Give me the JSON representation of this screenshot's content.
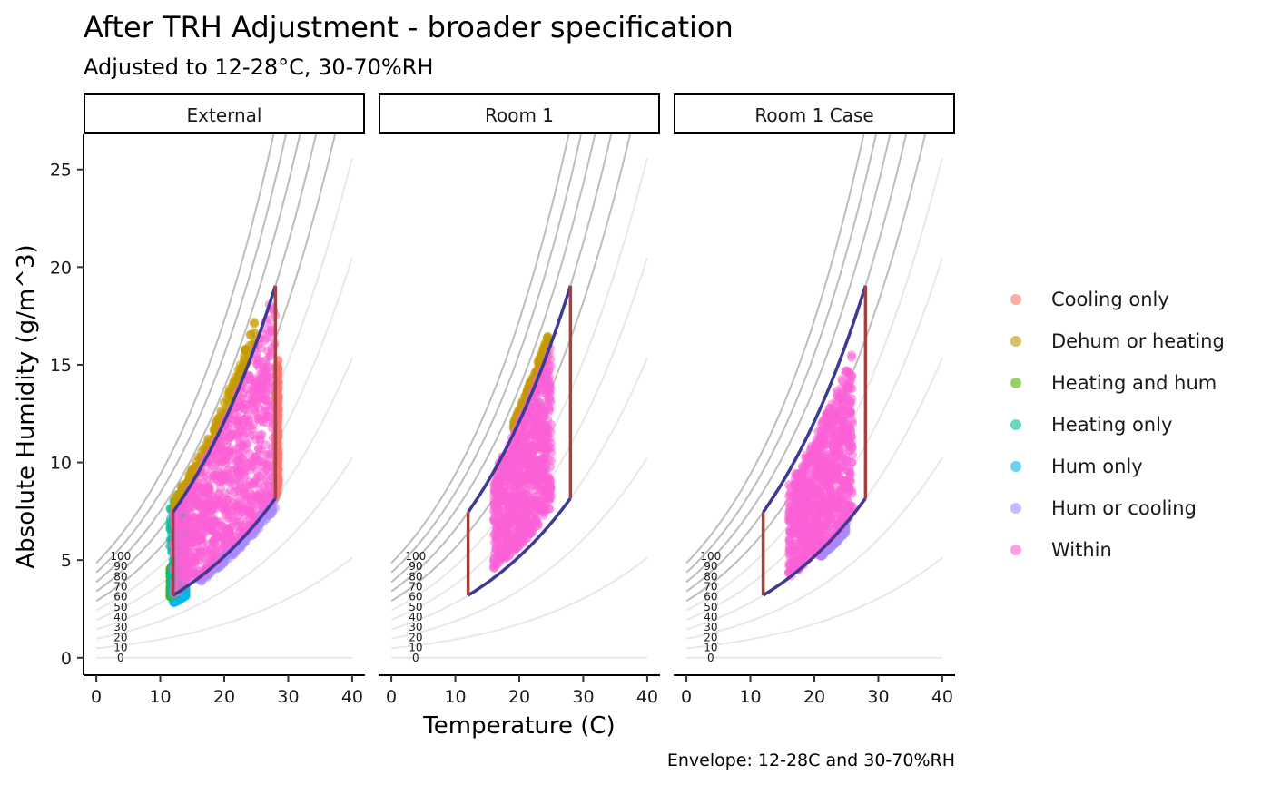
{
  "colors": {
    "Cooling only": "#F8766D",
    "Dehum or heating": "#C49A00",
    "Heating and hum": "#53B400",
    "Heating only": "#00C094",
    "Hum only": "#00B6EB",
    "Hum or cooling": "#A58AFF",
    "Within": "#FB61D7",
    "envelope_temp_edge": "#A0433F",
    "envelope_rh_edge": "#3D3A94",
    "rh_curve_major": "#BDBDBD",
    "rh_curve_minor": "#E8E8E8"
  },
  "chart_data": {
    "type": "scatter",
    "title": "After TRH Adjustment - broader specification",
    "subtitle": "Adjusted to 12-28°C, 30-70%RH",
    "caption": "Envelope: 12-28C and 30-70%RH",
    "xlabel": "Temperature (C)",
    "ylabel": "Absolute Humidity (g/m^3)",
    "xlim": [
      -2,
      42
    ],
    "ylim": [
      -0.8,
      26.8
    ],
    "x_ticks": [
      0,
      10,
      20,
      30,
      40
    ],
    "y_ticks": [
      0,
      5,
      10,
      15,
      20,
      25
    ],
    "x_tick_labels": [
      "0",
      "10",
      "20",
      "30",
      "40"
    ],
    "y_tick_labels": [
      "0",
      "5",
      "10",
      "15",
      "20",
      "25"
    ],
    "grid": false,
    "legend_position": "right",
    "facets": [
      "External",
      "Room 1",
      "Room 1 Case"
    ],
    "legend": [
      "Cooling only",
      "Dehum or heating",
      "Heating and hum",
      "Heating only",
      "Hum only",
      "Hum or cooling",
      "Within"
    ],
    "rh_curves": {
      "levels": [
        0,
        10,
        20,
        30,
        40,
        50,
        60,
        70,
        80,
        90,
        100
      ],
      "labels": [
        "0",
        "10",
        "20",
        "30",
        "40",
        "50",
        "60",
        "70",
        "80",
        "90",
        "100"
      ],
      "x_range": [
        0,
        40
      ]
    },
    "envelope": {
      "temp_min": 12,
      "temp_max": 28,
      "rh_min": 30,
      "rh_max": 70
    },
    "regions": [
      [
        {
          "category": "Within",
          "temp": [
            12,
            28
          ],
          "rh": [
            30,
            70
          ]
        },
        {
          "category": "Dehum or heating",
          "temp": [
            12,
            25
          ],
          "rh": [
            70,
            76
          ]
        },
        {
          "category": "Cooling only",
          "temp": [
            28,
            28.5
          ],
          "rh": [
            30,
            55
          ]
        },
        {
          "category": "Heating only",
          "temp": [
            11.5,
            14
          ],
          "rh": [
            30,
            75
          ]
        },
        {
          "category": "Heating and hum",
          "temp": [
            11.5,
            12.2
          ],
          "rh": [
            30,
            45
          ]
        },
        {
          "category": "Hum only",
          "temp": [
            12,
            14
          ],
          "rh": [
            26,
            30
          ]
        },
        {
          "category": "Hum or cooling",
          "temp": [
            16,
            28
          ],
          "rh": [
            28,
            31
          ]
        }
      ],
      [
        {
          "category": "Within",
          "temp": [
            16,
            25
          ],
          "rh": [
            33,
            70
          ]
        },
        {
          "category": "Dehum or heating",
          "temp": [
            19,
            24.5
          ],
          "rh": [
            70,
            74
          ]
        }
      ],
      [
        {
          "category": "Within",
          "temp": [
            16,
            26
          ],
          "rh": [
            30,
            65
          ]
        },
        {
          "category": "Hum or cooling",
          "temp": [
            21,
            25
          ],
          "rh": [
            28,
            30
          ]
        }
      ]
    ]
  }
}
